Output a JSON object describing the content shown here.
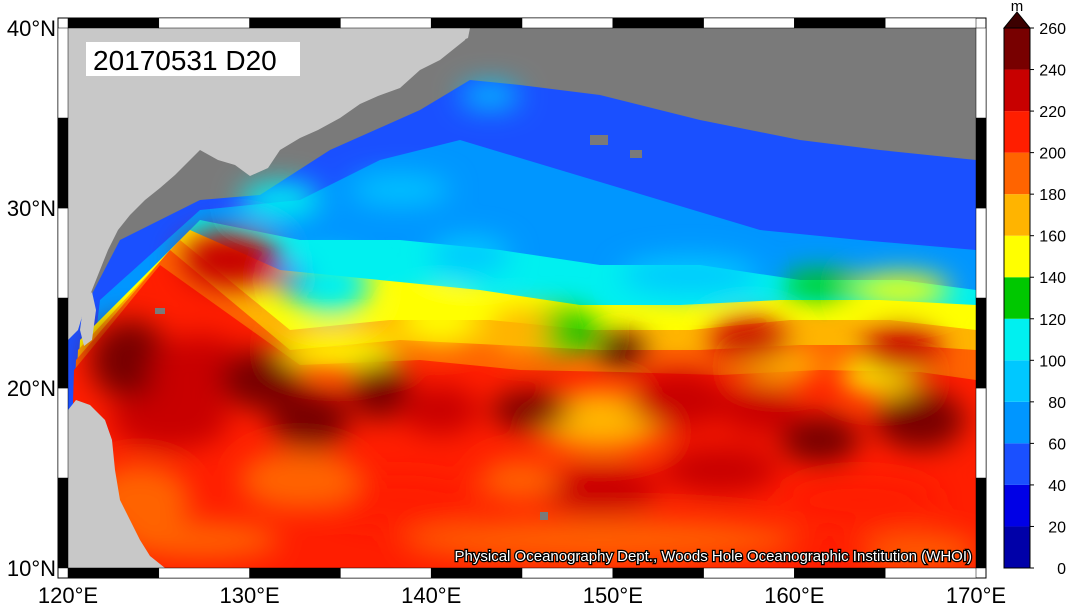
{
  "map": {
    "title_label": "20170531 D20",
    "credit": "Physical Oceanography Dept., Woods Hole Oceanographic Institution (WHOI)",
    "lon_ticks": [
      "120°E",
      "130°E",
      "140°E",
      "150°E",
      "160°E",
      "170°E"
    ],
    "lat_ticks": [
      "10°N",
      "20°N",
      "30°N",
      "40°N"
    ],
    "extent": {
      "lon": [
        120,
        170
      ],
      "lat": [
        10,
        40
      ]
    },
    "land_color": "#c8c8c8",
    "missing_color": "#7a7a7a"
  },
  "colorbar": {
    "unit": "m",
    "ticks": [
      "0",
      "20",
      "40",
      "60",
      "80",
      "100",
      "120",
      "140",
      "160",
      "180",
      "200",
      "220",
      "240",
      "260"
    ],
    "colors": [
      "#0000a8",
      "#0000e6",
      "#1a50ff",
      "#0096ff",
      "#00c8ff",
      "#00f0f0",
      "#00c800",
      "#ffff00",
      "#ffb400",
      "#ff6400",
      "#ff1e00",
      "#c80000",
      "#780000"
    ],
    "extend_color": "#3c0000"
  }
}
